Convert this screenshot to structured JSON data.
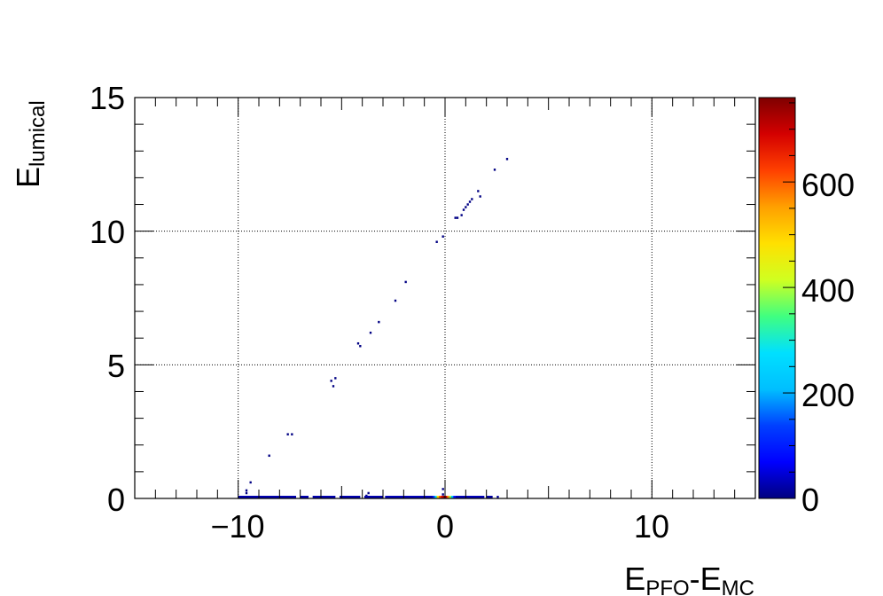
{
  "chart_data": {
    "type": "heatmap",
    "title": "",
    "xlabel": {
      "main": "E",
      "sub1": "PFO",
      "dash": "-",
      "main2": "E",
      "sub2": "MC"
    },
    "ylabel": {
      "main": "E",
      "sub": "lumical"
    },
    "xlim": [
      -15,
      15
    ],
    "ylim": [
      0,
      15
    ],
    "zlim": [
      0,
      760
    ],
    "x_ticks": [
      -10,
      0,
      10
    ],
    "x_tick_labels": [
      "−10",
      "0",
      "10"
    ],
    "y_ticks": [
      0,
      5,
      10,
      15
    ],
    "y_tick_labels": [
      "0",
      "5",
      "10",
      "15"
    ],
    "z_ticks": [
      0,
      200,
      400,
      600
    ],
    "z_tick_labels": [
      "0",
      "200",
      "400",
      "600"
    ],
    "grid": true,
    "colormap": [
      "#00007f",
      "#0000ff",
      "#0040ff",
      "#00bfff",
      "#00e0ff",
      "#40ff80",
      "#d0ff20",
      "#ffe000",
      "#ffa000",
      "#ff4000",
      "#d40000",
      "#7f0000"
    ],
    "bin_width": [
      0.1,
      0.075
    ],
    "points": [
      {
        "x": 3.0,
        "y": 12.7,
        "z": 2
      },
      {
        "x": 2.4,
        "y": 12.3,
        "z": 2
      },
      {
        "x": 1.6,
        "y": 11.5,
        "z": 2
      },
      {
        "x": 1.7,
        "y": 11.3,
        "z": 2
      },
      {
        "x": 1.3,
        "y": 11.2,
        "z": 3
      },
      {
        "x": 1.2,
        "y": 11.1,
        "z": 3
      },
      {
        "x": 1.1,
        "y": 11.0,
        "z": 3
      },
      {
        "x": 1.0,
        "y": 10.9,
        "z": 3
      },
      {
        "x": 0.9,
        "y": 10.8,
        "z": 3
      },
      {
        "x": 0.8,
        "y": 10.6,
        "z": 3
      },
      {
        "x": 0.5,
        "y": 10.5,
        "z": 3
      },
      {
        "x": 0.6,
        "y": 10.5,
        "z": 3
      },
      {
        "x": -0.1,
        "y": 9.8,
        "z": 2
      },
      {
        "x": -0.4,
        "y": 9.6,
        "z": 2
      },
      {
        "x": -1.9,
        "y": 8.1,
        "z": 2
      },
      {
        "x": -2.4,
        "y": 7.4,
        "z": 2
      },
      {
        "x": -3.2,
        "y": 6.6,
        "z": 2
      },
      {
        "x": -3.6,
        "y": 6.2,
        "z": 2
      },
      {
        "x": -4.2,
        "y": 5.8,
        "z": 2
      },
      {
        "x": -4.1,
        "y": 5.7,
        "z": 2
      },
      {
        "x": -5.3,
        "y": 4.5,
        "z": 2
      },
      {
        "x": -5.5,
        "y": 4.4,
        "z": 2
      },
      {
        "x": -5.4,
        "y": 4.2,
        "z": 2
      },
      {
        "x": -7.4,
        "y": 2.4,
        "z": 2
      },
      {
        "x": -7.6,
        "y": 2.4,
        "z": 2
      },
      {
        "x": -8.5,
        "y": 1.6,
        "z": 2
      },
      {
        "x": -9.4,
        "y": 0.6,
        "z": 2
      },
      {
        "x": -9.6,
        "y": 0.3,
        "z": 2
      },
      {
        "x": -9.6,
        "y": 0.2,
        "z": 2
      },
      {
        "x": -3.7,
        "y": 0.2,
        "z": 2
      },
      {
        "x": -3.8,
        "y": 0.1,
        "z": 2
      },
      {
        "x": -0.1,
        "y": 0.35,
        "z": 2
      },
      {
        "x": -0.1,
        "y": 0.15,
        "z": 2
      }
    ],
    "row0": {
      "y": 0.05,
      "segments": [
        [
          -10.0,
          -7.2,
          25
        ],
        [
          -7.0,
          -6.6,
          25
        ],
        [
          -6.4,
          -5.3,
          25
        ],
        [
          -5.1,
          -4.1,
          25
        ],
        [
          -3.9,
          -3.0,
          25
        ],
        [
          -2.9,
          -0.6,
          30
        ],
        [
          0.5,
          1.9,
          30
        ],
        [
          2.0,
          2.3,
          20
        ],
        [
          2.5,
          2.6,
          15
        ]
      ],
      "core": [
        [
          -0.6,
          120
        ],
        [
          -0.5,
          280
        ],
        [
          -0.4,
          480
        ],
        [
          -0.3,
          600
        ],
        [
          -0.2,
          680
        ],
        [
          -0.1,
          740
        ],
        [
          0.0,
          700
        ],
        [
          0.1,
          560
        ],
        [
          0.2,
          380
        ],
        [
          0.3,
          220
        ],
        [
          0.4,
          90
        ]
      ]
    }
  }
}
